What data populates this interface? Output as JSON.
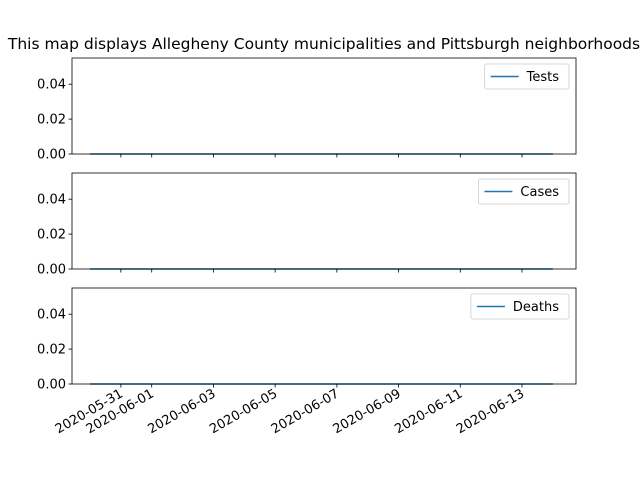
{
  "figure": {
    "title": "This map displays Allegheny County municipalities and Pittsburgh neighborhoods"
  },
  "colors": {
    "line": "#1f77b4",
    "axes": "#000000",
    "legend_border": "#cccccc",
    "background": "#ffffff"
  },
  "chart_data": [
    {
      "type": "line",
      "title": "This map displays Allegheny County municipalities and Pittsburgh neighborhoods",
      "xlabel": "",
      "ylabel": "",
      "x": [
        "2020-05-30",
        "2020-05-31",
        "2020-06-01",
        "2020-06-02",
        "2020-06-03",
        "2020-06-04",
        "2020-06-05",
        "2020-06-06",
        "2020-06-07",
        "2020-06-08",
        "2020-06-09",
        "2020-06-10",
        "2020-06-11",
        "2020-06-12",
        "2020-06-13",
        "2020-06-14"
      ],
      "series": [
        {
          "name": "Tests",
          "values": [
            0,
            0,
            0,
            0,
            0,
            0,
            0,
            0,
            0,
            0,
            0,
            0,
            0,
            0,
            0,
            0
          ]
        }
      ],
      "ylim": [
        0,
        0.055
      ],
      "yticks": [
        0.0,
        0.02,
        0.04
      ],
      "ytick_labels": [
        "0.00",
        "0.02",
        "0.04"
      ],
      "legend": "top-right",
      "grid": false
    },
    {
      "type": "line",
      "title": "",
      "xlabel": "",
      "ylabel": "",
      "x": [
        "2020-05-30",
        "2020-05-31",
        "2020-06-01",
        "2020-06-02",
        "2020-06-03",
        "2020-06-04",
        "2020-06-05",
        "2020-06-06",
        "2020-06-07",
        "2020-06-08",
        "2020-06-09",
        "2020-06-10",
        "2020-06-11",
        "2020-06-12",
        "2020-06-13",
        "2020-06-14"
      ],
      "series": [
        {
          "name": "Cases",
          "values": [
            0,
            0,
            0,
            0,
            0,
            0,
            0,
            0,
            0,
            0,
            0,
            0,
            0,
            0,
            0,
            0
          ]
        }
      ],
      "ylim": [
        0,
        0.055
      ],
      "yticks": [
        0.0,
        0.02,
        0.04
      ],
      "ytick_labels": [
        "0.00",
        "0.02",
        "0.04"
      ],
      "legend": "top-right",
      "grid": false
    },
    {
      "type": "line",
      "title": "",
      "xlabel": "",
      "ylabel": "",
      "x": [
        "2020-05-30",
        "2020-05-31",
        "2020-06-01",
        "2020-06-02",
        "2020-06-03",
        "2020-06-04",
        "2020-06-05",
        "2020-06-06",
        "2020-06-07",
        "2020-06-08",
        "2020-06-09",
        "2020-06-10",
        "2020-06-11",
        "2020-06-12",
        "2020-06-13",
        "2020-06-14"
      ],
      "series": [
        {
          "name": "Deaths",
          "values": [
            0,
            0,
            0,
            0,
            0,
            0,
            0,
            0,
            0,
            0,
            0,
            0,
            0,
            0,
            0,
            0
          ]
        }
      ],
      "ylim": [
        0,
        0.055
      ],
      "yticks": [
        0.0,
        0.02,
        0.04
      ],
      "ytick_labels": [
        "0.00",
        "0.02",
        "0.04"
      ],
      "legend": "top-right",
      "grid": false,
      "xlim": [
        "2020-05-29T10:00",
        "2020-06-14T18:00"
      ],
      "xticks": [
        "2020-05-31",
        "2020-06-01",
        "2020-06-03",
        "2020-06-05",
        "2020-06-07",
        "2020-06-09",
        "2020-06-11",
        "2020-06-13"
      ],
      "xtick_labels": [
        "2020-05-31",
        "2020-06-01",
        "2020-06-03",
        "2020-06-05",
        "2020-06-07",
        "2020-06-09",
        "2020-06-11",
        "2020-06-13"
      ]
    }
  ]
}
